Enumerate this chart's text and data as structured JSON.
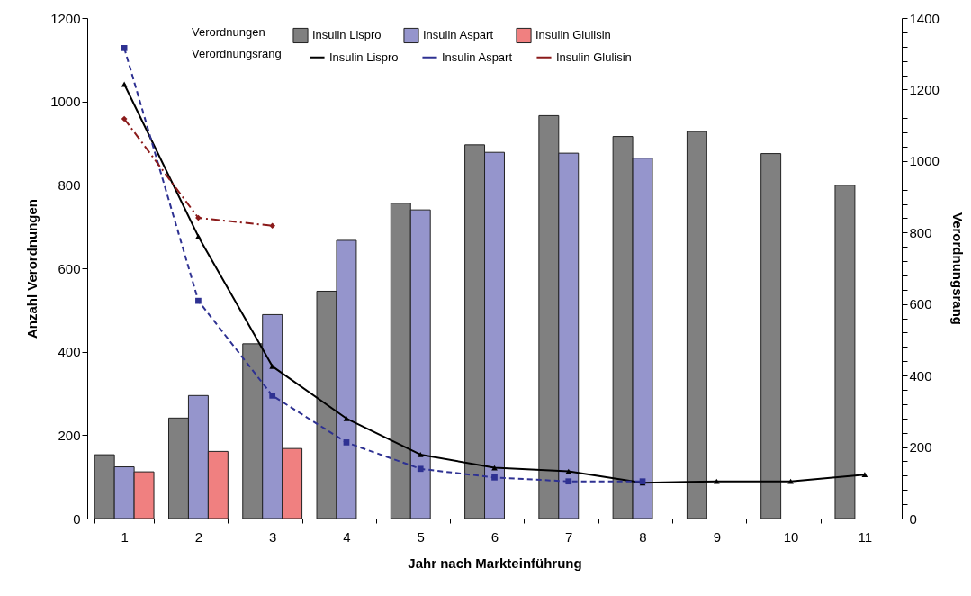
{
  "chart_data": {
    "type": "bar",
    "xlabel": "Jahr nach Markteinführung",
    "ylabel": "Anzahl Verordnungen",
    "y2label": "Verordnungsrang",
    "legend_title": "Verordnungen",
    "annotations": [
      "Verordnungsrang"
    ],
    "categories": [
      "1",
      "2",
      "3",
      "4",
      "5",
      "6",
      "7",
      "8",
      "9",
      "10",
      "11"
    ],
    "ylim": [
      0,
      1200
    ],
    "yticks": [
      0,
      200,
      400,
      600,
      800,
      1000,
      1200
    ],
    "y2lim": [
      0,
      1400
    ],
    "y2ticks": [
      0,
      {
        "value": 40,
        "label": null
      },
      {
        "value": 80,
        "label": null
      },
      {
        "value": 120,
        "label": null
      },
      {
        "value": 160,
        "label": null
      },
      200,
      {
        "value": 240,
        "label": null
      },
      {
        "value": 280,
        "label": null
      },
      {
        "value": 320,
        "label": null
      },
      {
        "value": 360,
        "label": null
      },
      400,
      {
        "value": 440,
        "label": null
      },
      {
        "value": 480,
        "label": null
      },
      {
        "value": 520,
        "label": null
      },
      {
        "value": 560,
        "label": null
      },
      600,
      {
        "value": 640,
        "label": null
      },
      {
        "value": 680,
        "label": null
      },
      {
        "value": 720,
        "label": null
      },
      {
        "value": 760,
        "label": null
      },
      800,
      {
        "value": 840,
        "label": null
      },
      {
        "value": 880,
        "label": null
      },
      {
        "value": 920,
        "label": null
      },
      {
        "value": 960,
        "label": null
      },
      1000,
      {
        "value": 1040,
        "label": null
      },
      {
        "value": 1080,
        "label": null
      },
      {
        "value": 1120,
        "label": null
      },
      {
        "value": 1160,
        "label": null
      },
      1200,
      {
        "value": 1240,
        "label": null
      },
      {
        "value": 1280,
        "label": null
      },
      {
        "value": 1320,
        "label": null
      },
      {
        "value": 1360,
        "label": null
      },
      1400
    ],
    "grid": false,
    "legend": "top right",
    "series": [
      {
        "name": "Insulin Lispro",
        "type": "bar",
        "color": "#808080",
        "values": [
          153,
          241,
          419,
          545,
          756,
          896,
          966,
          916,
          928,
          875,
          799
        ]
      },
      {
        "name": "Insulin Aspart",
        "type": "bar",
        "color": "#9595cc",
        "values": [
          124,
          295,
          489,
          667,
          740,
          878,
          876,
          864,
          null,
          null,
          null
        ]
      },
      {
        "name": "Insulin Glulisin",
        "type": "bar",
        "color": "#f08080",
        "values": [
          112,
          161,
          168,
          null,
          null,
          null,
          null,
          null,
          null,
          null,
          null
        ]
      },
      {
        "name": "Insulin Lispro",
        "type": "line",
        "axis": "y2",
        "color": "#000000",
        "marker": "triangle",
        "line_style": "solid",
        "values": [
          1215,
          789,
          426,
          280,
          179,
          142,
          132,
          100,
          104,
          104,
          123
        ]
      },
      {
        "name": "Insulin Aspart",
        "type": "line",
        "axis": "y2",
        "color": "#2e3192",
        "marker": "square",
        "line_style": "dashed",
        "values": [
          1316,
          609,
          344,
          213,
          139,
          115,
          104,
          104,
          null,
          null,
          null
        ]
      },
      {
        "name": "Insulin Glulisin",
        "type": "line",
        "axis": "y2",
        "color": "#8b1a1a",
        "marker": "diamond",
        "line_style": "dashdot",
        "values": [
          1118,
          841,
          819,
          null,
          null,
          null,
          null,
          null,
          null,
          null,
          null
        ]
      }
    ]
  }
}
